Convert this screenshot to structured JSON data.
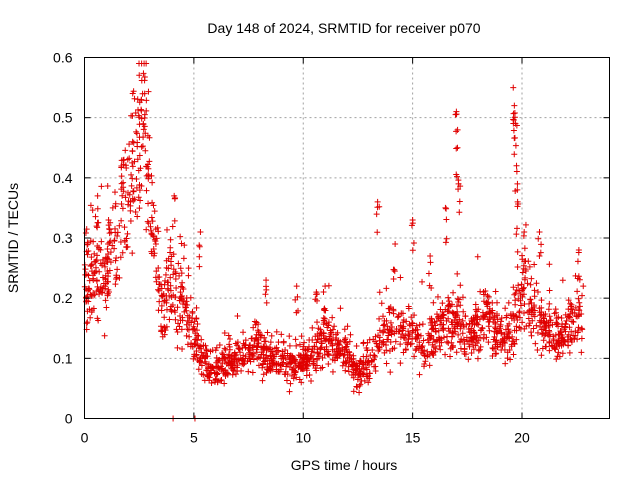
{
  "chart_data": {
    "type": "scatter",
    "title": "Day 148 of 2024, SRMTID for receiver p070",
    "xlabel": "GPS time / hours",
    "ylabel": "SRMTID / TECUs",
    "xlim": [
      0,
      24
    ],
    "ylim": [
      0,
      0.6
    ],
    "xticks": [
      0,
      5,
      10,
      15,
      20
    ],
    "xtick_labels": [
      "0",
      "5",
      "10",
      "15",
      "20"
    ],
    "yticks": [
      0,
      0.1,
      0.2,
      0.3,
      0.4,
      0.5,
      0.6
    ],
    "ytick_labels": [
      "0",
      "0.1",
      "0.2",
      "0.3",
      "0.4",
      "0.5",
      "0.6"
    ],
    "grid": true,
    "marker": "plus",
    "color": "#e00000",
    "trend": [
      [
        0.0,
        0.22
      ],
      [
        0.5,
        0.24
      ],
      [
        1.0,
        0.23
      ],
      [
        1.5,
        0.32
      ],
      [
        2.0,
        0.38
      ],
      [
        2.5,
        0.45
      ],
      [
        2.8,
        0.48
      ],
      [
        3.0,
        0.36
      ],
      [
        3.5,
        0.19
      ],
      [
        4.0,
        0.23
      ],
      [
        4.5,
        0.18
      ],
      [
        5.0,
        0.14
      ],
      [
        5.5,
        0.09
      ],
      [
        6.0,
        0.08
      ],
      [
        7.0,
        0.1
      ],
      [
        8.0,
        0.12
      ],
      [
        9.0,
        0.09
      ],
      [
        10.0,
        0.09
      ],
      [
        11.0,
        0.13
      ],
      [
        12.0,
        0.11
      ],
      [
        12.5,
        0.07
      ],
      [
        13.0,
        0.09
      ],
      [
        13.5,
        0.13
      ],
      [
        14.0,
        0.15
      ],
      [
        15.0,
        0.15
      ],
      [
        15.5,
        0.12
      ],
      [
        16.0,
        0.13
      ],
      [
        16.5,
        0.16
      ],
      [
        17.0,
        0.17
      ],
      [
        17.5,
        0.12
      ],
      [
        18.0,
        0.17
      ],
      [
        18.5,
        0.16
      ],
      [
        19.0,
        0.13
      ],
      [
        19.5,
        0.14
      ],
      [
        20.0,
        0.22
      ],
      [
        20.5,
        0.17
      ],
      [
        21.0,
        0.15
      ],
      [
        21.5,
        0.13
      ],
      [
        22.0,
        0.14
      ],
      [
        22.5,
        0.17
      ],
      [
        22.8,
        0.18
      ]
    ],
    "spikes": [
      [
        0.15,
        0.29
      ],
      [
        0.6,
        0.37
      ],
      [
        1.1,
        0.33
      ],
      [
        1.8,
        0.43
      ],
      [
        2.2,
        0.46
      ],
      [
        2.6,
        0.53
      ],
      [
        2.75,
        0.54
      ],
      [
        2.9,
        0.47
      ],
      [
        4.1,
        0.37
      ],
      [
        5.3,
        0.31
      ],
      [
        8.3,
        0.23
      ],
      [
        9.7,
        0.22
      ],
      [
        10.6,
        0.21
      ],
      [
        11.0,
        0.22
      ],
      [
        13.4,
        0.36
      ],
      [
        14.2,
        0.29
      ],
      [
        15.0,
        0.33
      ],
      [
        15.8,
        0.27
      ],
      [
        16.5,
        0.35
      ],
      [
        17.0,
        0.51
      ],
      [
        17.05,
        0.45
      ],
      [
        17.1,
        0.39
      ],
      [
        19.6,
        0.55
      ],
      [
        19.65,
        0.52
      ],
      [
        19.7,
        0.49
      ],
      [
        19.75,
        0.42
      ],
      [
        19.8,
        0.36
      ],
      [
        20.1,
        0.31
      ],
      [
        20.8,
        0.31
      ],
      [
        22.6,
        0.28
      ]
    ],
    "zero_points": [
      [
        4.05,
        0.0
      ],
      [
        5.05,
        0.0
      ]
    ],
    "n_points": 1900,
    "x_range": [
      0,
      22.8
    ]
  }
}
